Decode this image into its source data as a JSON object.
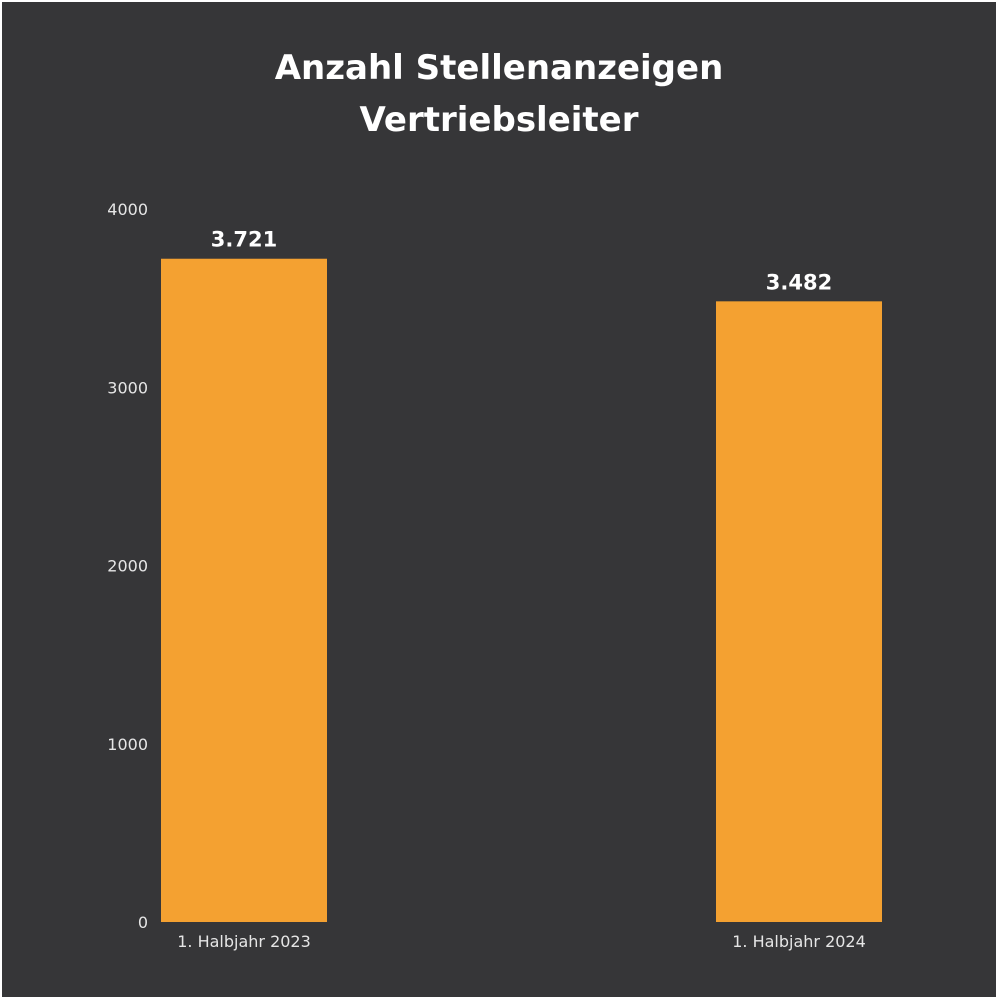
{
  "chart_data": {
    "type": "bar",
    "title_lines": [
      "Anzahl Stellenanzeigen",
      "Vertriebsleiter"
    ],
    "categories": [
      "1. Halbjahr 2023",
      "1. Halbjahr 2024"
    ],
    "values": [
      3721,
      3482
    ],
    "data_labels": [
      "3.721",
      "3.482"
    ],
    "ylim": [
      0,
      4000
    ],
    "yticks": [
      "0",
      "1000",
      "2000",
      "3000",
      "4000"
    ],
    "ytick_values": [
      0,
      1000,
      2000,
      3000,
      4000
    ],
    "grid": false,
    "legend": "none",
    "colors": {
      "background": "#363638",
      "bar": "#F4A131",
      "text": "#ffffff"
    }
  }
}
